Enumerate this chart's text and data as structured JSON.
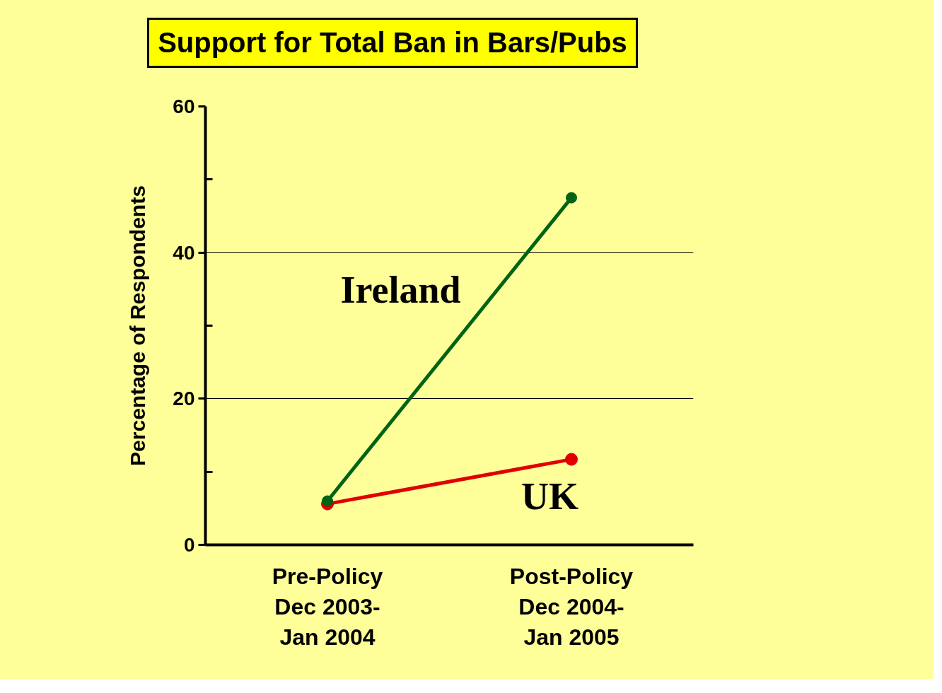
{
  "chart_data": {
    "type": "line",
    "title": "Support for Total Ban in Bars/Pubs",
    "ylabel": "Percentage of Respondents",
    "categories": [
      "Pre-Policy\nDec 2003-\nJan 2004",
      "Post-Policy\nDec 2004-\nJan 2005"
    ],
    "series": [
      {
        "name": "Ireland",
        "color": "#006414",
        "values": [
          6.0,
          47.5
        ]
      },
      {
        "name": "UK",
        "color": "#e00000",
        "values": [
          5.6,
          11.7
        ]
      }
    ],
    "ylim": [
      0,
      60
    ],
    "yticks": [
      0,
      {
        "value": 10,
        "label": null
      },
      20,
      {
        "value": 30,
        "label": null
      },
      40,
      {
        "value": 50,
        "label": null
      },
      60
    ],
    "grid": "y",
    "marker": "circle",
    "line_style": "solid"
  }
}
